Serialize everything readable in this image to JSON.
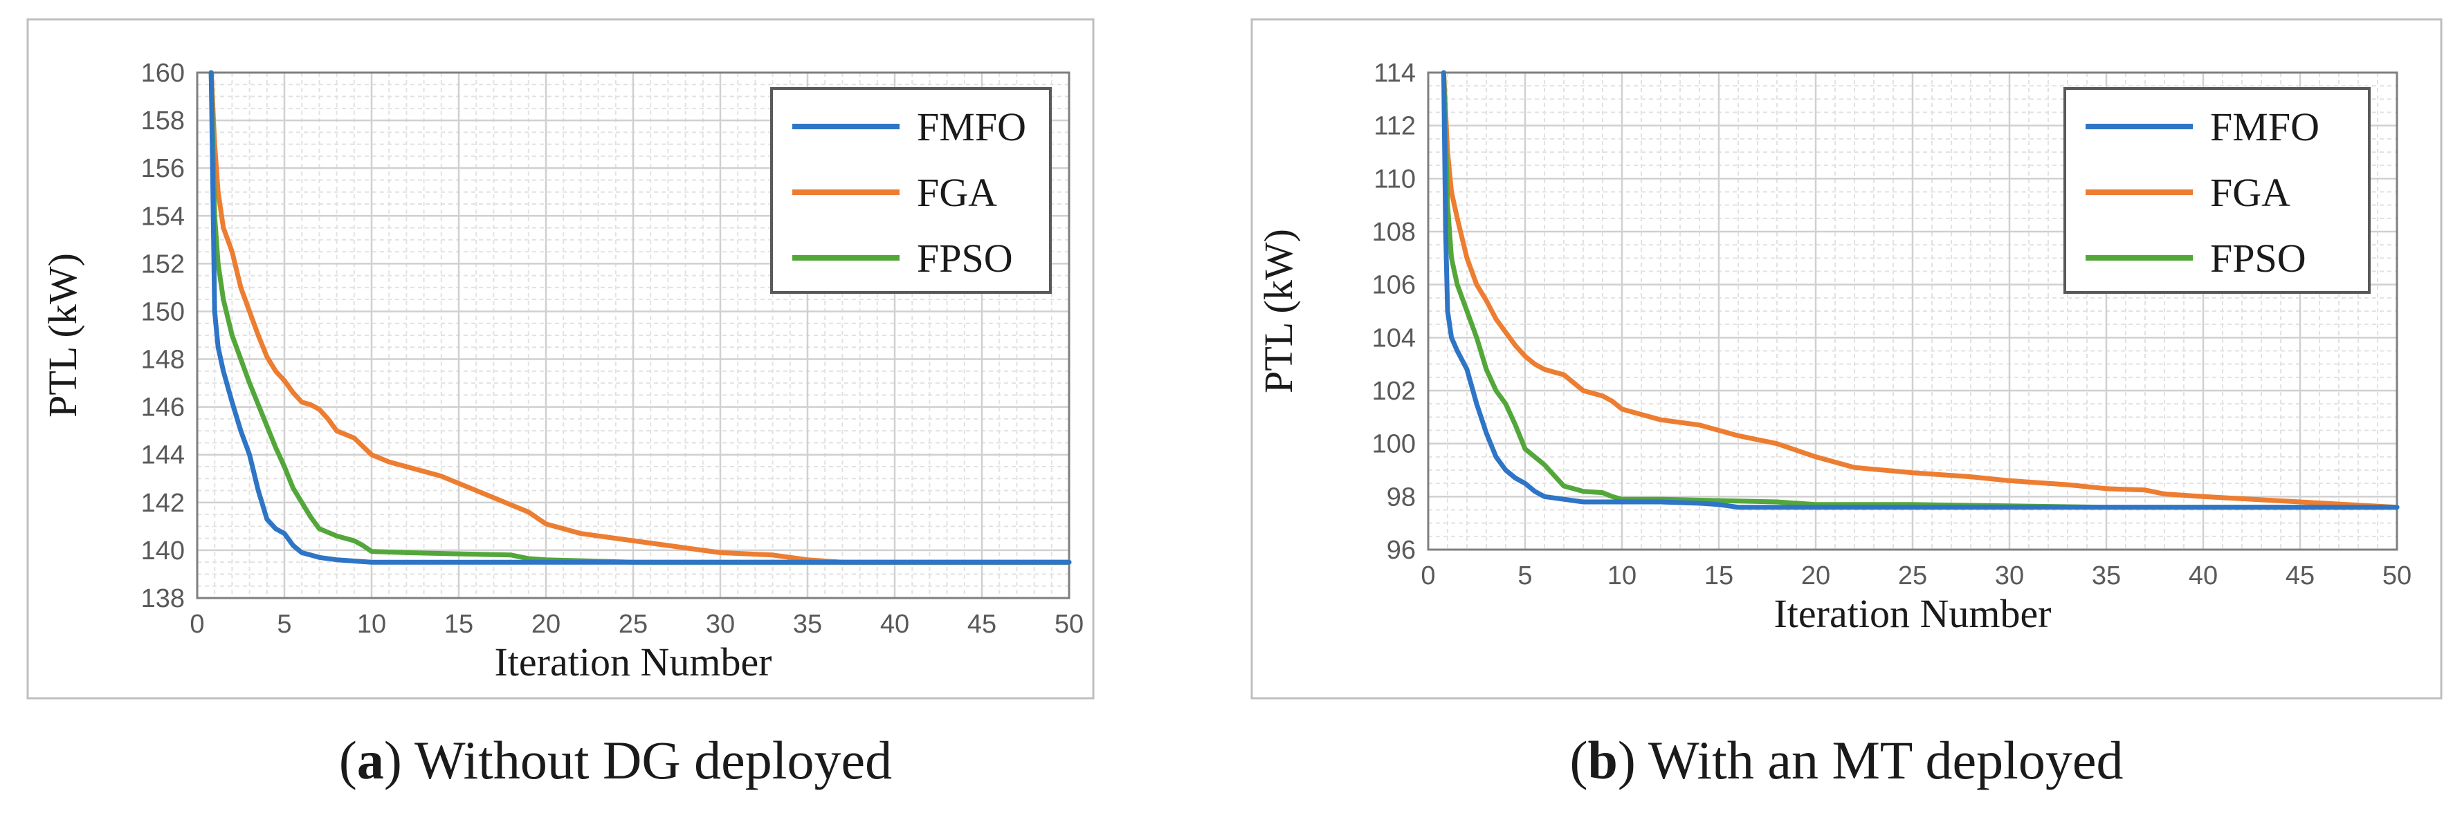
{
  "chart_data": [
    {
      "type": "line",
      "panel_letter": "a",
      "caption_text": "Without DG deployed",
      "xlabel": "Iteration Number",
      "ylabel": "PTL (kW)",
      "xlim": [
        0,
        50
      ],
      "ylim": [
        138,
        160
      ],
      "xticks": [
        0,
        5,
        10,
        15,
        20,
        25,
        30,
        35,
        40,
        45,
        50
      ],
      "yticks": [
        138,
        140,
        142,
        144,
        146,
        148,
        150,
        152,
        154,
        156,
        158,
        160
      ],
      "legend": [
        "FMFO",
        "FGA",
        "FPSO"
      ],
      "legend_position": "top-right",
      "series": [
        {
          "name": "FMFO",
          "color": "#2E75C6",
          "x": [
            0.8,
            0.9,
            1,
            1.2,
            1.5,
            2,
            2.5,
            3,
            3.5,
            4,
            4.5,
            5,
            5.5,
            6,
            6.5,
            7,
            8,
            9,
            10,
            12,
            15,
            20,
            25,
            30,
            35,
            40,
            45,
            50
          ],
          "y": [
            160,
            155,
            150,
            148.5,
            147.5,
            146.2,
            145,
            144,
            142.5,
            141.3,
            140.9,
            140.7,
            140.2,
            139.9,
            139.8,
            139.7,
            139.6,
            139.55,
            139.5,
            139.5,
            139.5,
            139.5,
            139.5,
            139.5,
            139.5,
            139.5,
            139.5,
            139.5
          ]
        },
        {
          "name": "FGA",
          "color": "#ED7D31",
          "x": [
            0.8,
            1,
            1.2,
            1.5,
            2,
            2.5,
            3,
            3.5,
            4,
            4.5,
            5,
            5.5,
            6,
            6.5,
            7,
            7.5,
            8,
            9,
            10,
            11,
            12,
            13,
            14,
            15,
            16,
            17,
            18,
            19,
            20,
            21,
            22,
            23,
            25,
            27,
            30,
            33,
            35,
            37,
            40,
            45,
            50
          ],
          "y": [
            160,
            157,
            155,
            153.5,
            152.5,
            151,
            150,
            149,
            148.1,
            147.5,
            147.1,
            146.6,
            146.2,
            146.1,
            145.9,
            145.5,
            145,
            144.7,
            144,
            143.7,
            143.5,
            143.3,
            143.1,
            142.8,
            142.5,
            142.2,
            141.9,
            141.6,
            141.1,
            140.9,
            140.7,
            140.6,
            140.4,
            140.2,
            139.9,
            139.8,
            139.6,
            139.5,
            139.5,
            139.5,
            139.5
          ]
        },
        {
          "name": "FPSO",
          "color": "#53A73A",
          "x": [
            0.8,
            1,
            1.2,
            1.5,
            2,
            2.5,
            3,
            3.5,
            4,
            4.5,
            5,
            5.5,
            6,
            6.5,
            7,
            8,
            9,
            9.5,
            10,
            12,
            15,
            18,
            19,
            20,
            25,
            30,
            35,
            40,
            45,
            50
          ],
          "y": [
            160,
            154,
            152,
            150.5,
            149,
            148,
            147,
            146.1,
            145.2,
            144.3,
            143.5,
            142.6,
            142,
            141.4,
            140.9,
            140.6,
            140.4,
            140.2,
            139.95,
            139.9,
            139.85,
            139.8,
            139.65,
            139.6,
            139.5,
            139.5,
            139.5,
            139.5,
            139.5,
            139.5
          ]
        }
      ]
    },
    {
      "type": "line",
      "panel_letter": "b",
      "caption_text": "With an MT deployed",
      "xlabel": "Iteration Number",
      "ylabel": "PTL (kW)",
      "xlim": [
        0,
        50
      ],
      "ylim": [
        96,
        114
      ],
      "xticks": [
        0,
        5,
        10,
        15,
        20,
        25,
        30,
        35,
        40,
        45,
        50
      ],
      "yticks": [
        96,
        98,
        100,
        102,
        104,
        106,
        108,
        110,
        112,
        114
      ],
      "legend": [
        "FMFO",
        "FGA",
        "FPSO"
      ],
      "legend_position": "top-right",
      "series": [
        {
          "name": "FMFO",
          "color": "#2E75C6",
          "x": [
            0.8,
            0.9,
            1,
            1.2,
            1.5,
            2,
            2.5,
            3,
            3.5,
            4,
            4.5,
            5,
            5.5,
            6,
            7,
            8,
            9,
            10,
            12,
            14,
            15,
            16,
            20,
            25,
            30,
            35,
            40,
            45,
            50
          ],
          "y": [
            114,
            108,
            105,
            104,
            103.5,
            102.8,
            101.5,
            100.4,
            99.5,
            99,
            98.7,
            98.5,
            98.2,
            98,
            97.9,
            97.8,
            97.8,
            97.8,
            97.8,
            97.75,
            97.7,
            97.6,
            97.6,
            97.6,
            97.6,
            97.6,
            97.6,
            97.6,
            97.6
          ]
        },
        {
          "name": "FGA",
          "color": "#ED7D31",
          "x": [
            0.8,
            1,
            1.2,
            1.5,
            2,
            2.5,
            3,
            3.5,
            4,
            4.5,
            5,
            5.5,
            6,
            6.5,
            7,
            7.5,
            8,
            9,
            9.5,
            10,
            11,
            12,
            14,
            15,
            16,
            18,
            20,
            22,
            25,
            28,
            30,
            33,
            35,
            37,
            38,
            40,
            45,
            50
          ],
          "y": [
            114,
            111,
            109.5,
            108.5,
            107,
            106,
            105.4,
            104.7,
            104.2,
            103.7,
            103.3,
            103,
            102.8,
            102.7,
            102.6,
            102.3,
            102,
            101.8,
            101.6,
            101.3,
            101.1,
            100.9,
            100.7,
            100.5,
            100.3,
            100,
            99.5,
            99.1,
            98.9,
            98.75,
            98.6,
            98.45,
            98.3,
            98.25,
            98.1,
            98,
            97.8,
            97.6
          ]
        },
        {
          "name": "FPSO",
          "color": "#53A73A",
          "x": [
            0.8,
            1,
            1.2,
            1.5,
            2,
            2.5,
            3,
            3.5,
            4,
            4.5,
            5,
            5.5,
            6,
            6.5,
            7,
            8,
            9,
            9.5,
            10,
            12,
            15,
            18,
            19,
            20,
            25,
            30,
            35,
            40,
            45,
            50
          ],
          "y": [
            114,
            109,
            107,
            106,
            105,
            104,
            102.8,
            102,
            101.5,
            100.7,
            99.8,
            99.5,
            99.2,
            98.8,
            98.4,
            98.2,
            98.15,
            98,
            97.9,
            97.9,
            97.85,
            97.8,
            97.75,
            97.7,
            97.7,
            97.65,
            97.6,
            97.6,
            97.6,
            97.6
          ]
        }
      ]
    }
  ]
}
